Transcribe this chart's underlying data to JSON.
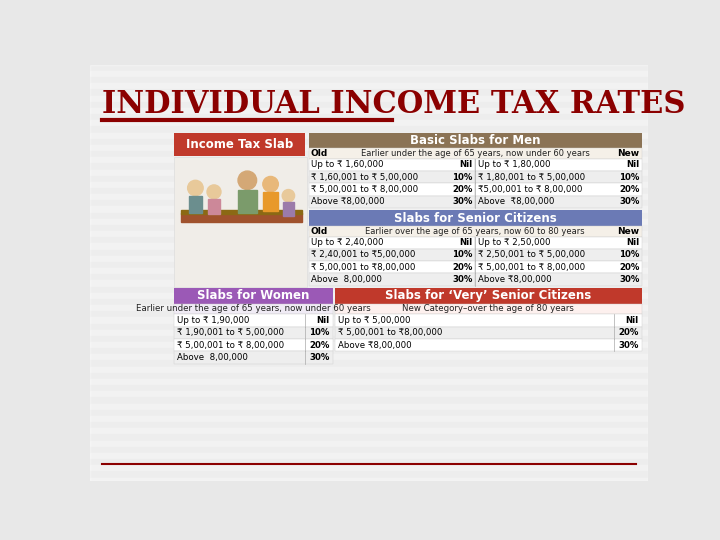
{
  "title": "INDIVIDUAL INCOME TAX RATES",
  "title_color": "#8B0000",
  "title_fontsize": 22,
  "bg_color": "#e8e8e8",
  "stripe_color": "#d8d8d8",
  "content_bg": "#f5f5f5",
  "line_color": "#8B0000",
  "sections": {
    "men": {
      "header": "Basic Slabs for Men",
      "header_bg": "#8B7355",
      "header_fg": "white",
      "subheader_old": "Old",
      "subheader_mid": "Earlier under the age of 65 years, now under 60 years",
      "subheader_new": "New",
      "subheader_bg": "#F5F0E8",
      "old_rows": [
        [
          "Up to ₹ 1,60,000",
          "Nil"
        ],
        [
          "₹ 1,60,001 to ₹ 5,00,000",
          "10%"
        ],
        [
          "₹ 5,00,001 to ₹ 8,00,000",
          "20%"
        ],
        [
          "Above ₹8,00,000",
          "30%"
        ]
      ],
      "new_rows": [
        [
          "Up to ₹ 1,80,000",
          "Nil"
        ],
        [
          "₹ 1,80,001 to ₹ 5,00,000",
          "10%"
        ],
        [
          "₹5,00,001 to ₹ 8,00,000",
          "20%"
        ],
        [
          "Above  ₹8,00,000",
          "30%"
        ]
      ],
      "row_colors": [
        "#FFFFFF",
        "#EEEEEE",
        "#FFFFFF",
        "#EEEEEE"
      ]
    },
    "senior": {
      "header": "Slabs for Senior Citizens",
      "header_bg": "#6B7AB5",
      "header_fg": "white",
      "subheader_old": "Old",
      "subheader_mid": "Earlier over the age of 65 years, now 60 to 80 years",
      "subheader_new": "New",
      "subheader_bg": "#F5F0E8",
      "old_rows": [
        [
          "Up to ₹ 2,40,000",
          "Nil"
        ],
        [
          "₹ 2,40,001 to ₹5,00,000",
          "10%"
        ],
        [
          "₹ 5,00,001 to ₹8,00,000",
          "20%"
        ],
        [
          "Above  8,00,000",
          "30%"
        ]
      ],
      "new_rows": [
        [
          "Up to ₹ 2,50,000",
          "Nil"
        ],
        [
          "₹ 2,50,001 to ₹ 5,00,000",
          "10%"
        ],
        [
          "₹ 5,00,001 to ₹ 8,00,000",
          "20%"
        ],
        [
          "Above ₹8,00,000",
          "30%"
        ]
      ],
      "row_colors": [
        "#FFFFFF",
        "#EEEEEE",
        "#FFFFFF",
        "#EEEEEE"
      ]
    },
    "women": {
      "header": "Slabs for Women",
      "header_bg": "#9B59B6",
      "header_fg": "white",
      "subheader": "Earlier under the age of 65 years, now under 60 years",
      "subheader_bg": "#F0EBF5",
      "rows": [
        [
          "Up to ₹ 1,90,000",
          "Nil"
        ],
        [
          "₹ 1,90,001 to ₹ 5,00,000",
          "10%"
        ],
        [
          "₹ 5,00,001 to ₹ 8,00,000",
          "20%"
        ],
        [
          "Above  8,00,000",
          "30%"
        ]
      ],
      "row_colors": [
        "#FFFFFF",
        "#EEEEEE",
        "#FFFFFF",
        "#EEEEEE"
      ]
    },
    "very_senior": {
      "header": "Slabs for ‘Very’ Senior Citizens",
      "header_bg": "#C0392B",
      "header_fg": "white",
      "subheader": "New Category–over the age of 80 years",
      "subheader_bg": "#FDF0EE",
      "rows": [
        [
          "Up to ₹ 5,00,000",
          "Nil"
        ],
        [
          "₹ 5,00,001 to ₹8,00,000",
          "20%"
        ],
        [
          "Above ₹8,00,000",
          "30%"
        ]
      ],
      "row_colors": [
        "#FFFFFF",
        "#EEEEEE",
        "#FFFFFF"
      ]
    },
    "income_tax_slab": {
      "label": "Income Tax Slab",
      "bg": "#C0392B",
      "fg": "white"
    }
  }
}
